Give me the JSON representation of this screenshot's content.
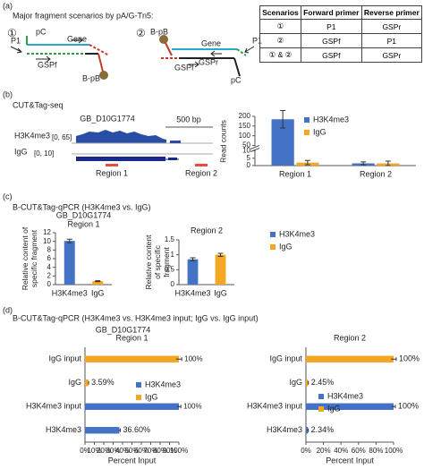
{
  "panel_a": {
    "label": "(a)",
    "title": "Major fragment scenarios by pA/G-Tn5:",
    "scenario_1": {
      "number": "①",
      "labels": [
        "pC",
        "Gene",
        "P1",
        "GSPf",
        "B-pB"
      ]
    },
    "scenario_2": {
      "number": "②",
      "labels": [
        "B-pB",
        "Gene",
        "GSPr",
        "P1",
        "GSPf",
        "pC"
      ]
    },
    "table": {
      "header": [
        "Scenarios",
        "Forward primer",
        "Reverse primer"
      ],
      "rows": [
        [
          "①",
          "P1",
          "GSPr"
        ],
        [
          "②",
          "GSPf",
          "P1"
        ],
        [
          "① & ②",
          "GSPf",
          "GSPr"
        ]
      ]
    }
  },
  "panel_b": {
    "label": "(b)",
    "title": "CUT&Tag-seq",
    "browser": {
      "gene": "GB_D10G1774",
      "scale": "500 bp",
      "tracks": [
        {
          "name": "H3K4me3",
          "range": "[0, 65]"
        },
        {
          "name": "IgG",
          "range": "[0, 10]"
        }
      ],
      "regions": [
        "Region 1",
        "Region 2"
      ]
    }
  },
  "panel_c": {
    "label": "(c)",
    "title": "B-CUT&Tag-qPCR (H3K4me3 vs. IgG)"
  },
  "panel_d": {
    "label": "(d)",
    "title": "B-CUT&Tag-qPCR (H3K4me3 vs. H3K4me3 input; IgG vs. IgG input)"
  },
  "chart_data": [
    {
      "type": "bar",
      "ylabel": "Read counts",
      "categories": [
        "Region 1",
        "Region 2"
      ],
      "series": [
        {
          "name": "H3K4me3",
          "color": "#4472c4",
          "values": [
            185,
            1.5
          ],
          "errors": [
            45,
            1
          ]
        },
        {
          "name": "IgG",
          "color": "#f5a623",
          "values": [
            2,
            1.5
          ],
          "errors": [
            1.5,
            1.5
          ]
        }
      ],
      "ylim": [
        0,
        200
      ],
      "yticks": [
        0,
        5,
        10,
        50,
        100,
        150,
        200
      ],
      "axis_break": [
        10,
        50
      ]
    },
    {
      "type": "bar",
      "title": "GB_D10G1774",
      "subtitle": "Region 1",
      "ylabel": "Relative content of specific fragment",
      "categories": [
        "H3K4me3",
        "IgG"
      ],
      "values": [
        10.1,
        0.8
      ],
      "errors": [
        0.4,
        0.1
      ],
      "colors": [
        "#4472c4",
        "#f5a623"
      ],
      "ylim": [
        0,
        12
      ],
      "yticks": [
        0,
        2,
        4,
        6,
        8,
        10,
        12
      ]
    },
    {
      "type": "bar",
      "title": "Region 2",
      "ylabel": "Relative content of specific fragment",
      "categories": [
        "H3K4me3",
        "IgG"
      ],
      "values": [
        0.85,
        1.0
      ],
      "errors": [
        0.05,
        0.05
      ],
      "colors": [
        "#4472c4",
        "#f5a623"
      ],
      "ylim": [
        0,
        1.5
      ],
      "yticks": [
        0,
        0.5,
        1,
        1.5
      ],
      "legend": [
        {
          "name": "H3K4me3",
          "color": "#4472c4"
        },
        {
          "name": "IgG",
          "color": "#f5a623"
        }
      ]
    },
    {
      "type": "hbar",
      "title": "GB_D10G1774",
      "subtitle": "Region 1",
      "xlabel": "Percent Input",
      "categories": [
        "IgG input",
        "IgG",
        "H3K4me3 input",
        "H3K4me3"
      ],
      "values": [
        100,
        3.59,
        100,
        36.6
      ],
      "value_labels": [
        "100%",
        "3.59%",
        "100%",
        "36.60%"
      ],
      "errors": [
        3,
        0.3,
        2,
        1
      ],
      "colors": [
        "#f5a623",
        "#f5a623",
        "#4472c4",
        "#4472c4"
      ],
      "xlim": [
        0,
        100
      ],
      "xticks": [
        {
          "value": 0,
          "label": "0%"
        },
        {
          "value": 10,
          "label": "10%"
        },
        {
          "value": 20,
          "label": "20%"
        },
        {
          "value": 30,
          "label": "30%"
        },
        {
          "value": 40,
          "label": "40%"
        },
        {
          "value": 50,
          "label": "50%"
        },
        {
          "value": 60,
          "label": "60%"
        },
        {
          "value": 70,
          "label": "70%"
        },
        {
          "value": 80,
          "label": "80%"
        },
        {
          "value": 90,
          "label": "90%"
        },
        {
          "value": 100,
          "label": "100%"
        }
      ],
      "legend": [
        {
          "name": "H3K4me3",
          "color": "#4472c4"
        },
        {
          "name": "IgG",
          "color": "#f5a623"
        }
      ]
    },
    {
      "type": "hbar",
      "title": "Region 2",
      "xlabel": "Percent Input",
      "categories": [
        "IgG input",
        "IgG",
        "H3K4me3 input",
        "H3K4me3"
      ],
      "values": [
        100,
        2.45,
        100,
        2.34
      ],
      "value_labels": [
        "100%",
        "2.45%",
        "100%",
        "2.34%"
      ],
      "errors": [
        3,
        0.3,
        2,
        0.3
      ],
      "colors": [
        "#f5a623",
        "#f5a623",
        "#4472c4",
        "#4472c4"
      ],
      "xlim": [
        0,
        100
      ],
      "xticks": [
        {
          "value": 0,
          "label": "0%"
        },
        {
          "value": 20,
          "label": "20%"
        },
        {
          "value": 40,
          "label": "40%"
        },
        {
          "value": 60,
          "label": "60%"
        },
        {
          "value": 80,
          "label": "80%"
        },
        {
          "value": 100,
          "label": "100%"
        }
      ],
      "legend": [
        {
          "name": "H3K4me3",
          "color": "#4472c4"
        },
        {
          "name": "IgG",
          "color": "#f5a623"
        }
      ]
    }
  ]
}
